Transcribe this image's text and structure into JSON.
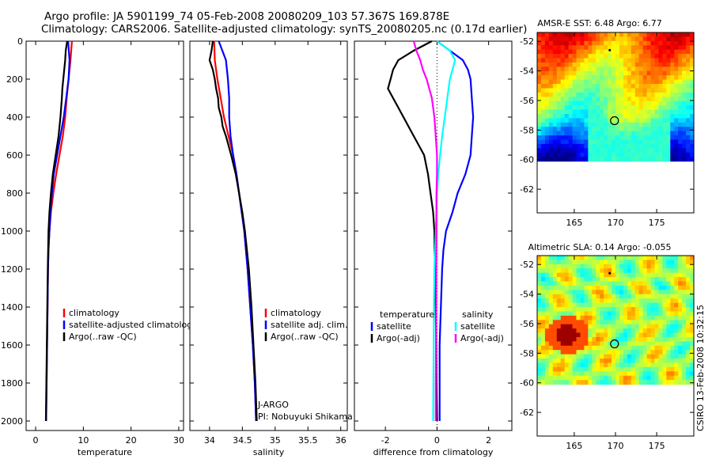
{
  "header": {
    "line1": "Argo profile: JA 5901199_74 05-Feb-2008 20080209_103 57.367S 169.878E",
    "line2": "Climatology: CARS2006. Satellite-adjusted climatology: synTS_20080205.nc (0.17d earlier)"
  },
  "colors": {
    "clim": "#ff0000",
    "sat": "#0000ff",
    "argo": "#000000",
    "sat_sal": "#00ffff",
    "argo_sal": "#ff00ff"
  },
  "chart_data": [
    {
      "type": "line",
      "name": "temperature-profile",
      "xlabel": "temperature",
      "ylabel": "",
      "xlim": [
        -2,
        31
      ],
      "ylim": [
        2050,
        0
      ],
      "xticks": [
        0,
        10,
        20,
        30
      ],
      "yticks": [
        0,
        200,
        400,
        600,
        800,
        1000,
        1200,
        1400,
        1600,
        1800,
        2000
      ],
      "legend": [
        "climatology",
        "satellite-adjusted climatology",
        "Argo(..raw -QC)"
      ],
      "series": [
        {
          "name": "climatology",
          "color": "clim",
          "depth": [
            0,
            100,
            200,
            300,
            400,
            500,
            600,
            700,
            800,
            900,
            1000,
            1100,
            1200,
            1400,
            1600,
            1800,
            2000
          ],
          "values": [
            7.6,
            7.3,
            6.9,
            6.5,
            6.2,
            5.7,
            5.0,
            4.3,
            3.7,
            3.2,
            2.9,
            2.7,
            2.6,
            2.5,
            2.4,
            2.3,
            2.2
          ]
        },
        {
          "name": "satellite-adjusted climatology",
          "color": "sat",
          "depth": [
            0,
            100,
            200,
            300,
            400,
            500,
            600,
            700,
            800,
            900,
            1000,
            1100,
            1200,
            1400,
            1600,
            1800,
            2000
          ],
          "values": [
            6.8,
            7.1,
            6.9,
            6.4,
            5.9,
            5.2,
            4.5,
            3.8,
            3.4,
            3.1,
            2.9,
            2.7,
            2.6,
            2.5,
            2.4,
            2.3,
            2.2
          ]
        },
        {
          "name": "Argo(..raw -QC)",
          "color": "argo",
          "depth": [
            0,
            50,
            100,
            150,
            200,
            250,
            300,
            400,
            500,
            600,
            700,
            800,
            900,
            1000,
            1200,
            1400,
            1600,
            1800,
            2000
          ],
          "values": [
            6.6,
            6.3,
            6.2,
            6.0,
            5.8,
            5.6,
            5.5,
            5.2,
            4.8,
            4.2,
            3.6,
            3.2,
            2.9,
            2.7,
            2.55,
            2.45,
            2.35,
            2.25,
            2.15
          ]
        }
      ]
    },
    {
      "type": "line",
      "name": "salinity-profile",
      "xlabel": "salinity",
      "xlim": [
        33.7,
        36.1
      ],
      "ylim": [
        2050,
        0
      ],
      "xticks": [
        34,
        34.5,
        35,
        35.5,
        36
      ],
      "legend": [
        "climatology",
        "satellite adj. clim.",
        "Argo(..raw -QC)"
      ],
      "annotation": [
        "J-ARGO",
        "PI: Nobuyuki Shikama"
      ],
      "series": [
        {
          "name": "climatology",
          "color": "clim",
          "depth": [
            0,
            100,
            200,
            300,
            400,
            500,
            600,
            700,
            800,
            900,
            1000,
            1200,
            1400,
            1600,
            1800,
            2000
          ],
          "values": [
            34.07,
            34.08,
            34.12,
            34.17,
            34.22,
            34.29,
            34.36,
            34.41,
            34.45,
            34.49,
            34.53,
            34.58,
            34.62,
            34.66,
            34.69,
            34.71
          ]
        },
        {
          "name": "satellite adj. clim.",
          "color": "sat",
          "depth": [
            0,
            100,
            200,
            300,
            400,
            500,
            600,
            700,
            800,
            900,
            1000,
            1200,
            1400,
            1600,
            1800,
            2000
          ],
          "values": [
            34.14,
            34.25,
            34.28,
            34.3,
            34.3,
            34.32,
            34.36,
            34.41,
            34.45,
            34.49,
            34.53,
            34.58,
            34.62,
            34.66,
            34.69,
            34.71
          ]
        },
        {
          "name": "Argo(..raw -QC)",
          "color": "argo",
          "depth": [
            0,
            50,
            100,
            150,
            200,
            250,
            300,
            350,
            400,
            450,
            500,
            600,
            700,
            800,
            900,
            1000,
            1200,
            1400,
            1600,
            1800,
            2000
          ],
          "values": [
            34.05,
            34.03,
            34.0,
            34.05,
            34.08,
            34.1,
            34.13,
            34.14,
            34.18,
            34.2,
            34.25,
            34.33,
            34.4,
            34.45,
            34.5,
            34.54,
            34.6,
            34.64,
            34.67,
            34.7,
            34.72
          ]
        }
      ]
    },
    {
      "type": "line",
      "name": "difference-profile",
      "xlabel": "difference from climatology",
      "xlim": [
        -3.2,
        2.9
      ],
      "ylim": [
        2050,
        0
      ],
      "xticks": [
        -2,
        0,
        2
      ],
      "legend_left": [
        "temperature",
        "satellite",
        "Argo(-adj)"
      ],
      "legend_right": [
        "salinity",
        "satellite",
        "Argo(-adj)"
      ],
      "series": [
        {
          "name": "temperature satellite",
          "color": "sat",
          "depth": [
            0,
            50,
            100,
            150,
            200,
            300,
            400,
            500,
            600,
            700,
            800,
            900,
            1000,
            1100,
            1200,
            1400,
            1600,
            1800,
            2000
          ],
          "values": [
            0.0,
            0.5,
            1.0,
            1.2,
            1.3,
            1.35,
            1.4,
            1.35,
            1.3,
            1.1,
            0.8,
            0.6,
            0.35,
            0.25,
            0.2,
            0.15,
            0.1,
            0.1,
            0.1
          ]
        },
        {
          "name": "temperature Argo(-adj)",
          "color": "argo",
          "depth": [
            0,
            50,
            100,
            150,
            200,
            250,
            300,
            350,
            400,
            450,
            500,
            550,
            600,
            700,
            800,
            900,
            1000,
            1200,
            1400,
            1600,
            1800,
            2000
          ],
          "values": [
            -0.2,
            -0.9,
            -1.5,
            -1.7,
            -1.8,
            -1.9,
            -1.7,
            -1.5,
            -1.3,
            -1.1,
            -0.9,
            -0.7,
            -0.5,
            -0.35,
            -0.25,
            -0.15,
            -0.1,
            -0.08,
            -0.05,
            -0.03,
            -0.02,
            0.0
          ]
        },
        {
          "name": "salinity satellite",
          "color": "sat_sal",
          "depth": [
            0,
            50,
            100,
            150,
            200,
            300,
            400,
            500,
            600,
            700,
            800,
            1000,
            1200,
            1400,
            1600,
            1800,
            2000
          ],
          "values": [
            0.0,
            0.5,
            0.7,
            0.6,
            0.5,
            0.4,
            0.3,
            0.2,
            0.12,
            0.05,
            0.0,
            -0.05,
            -0.1,
            -0.12,
            -0.13,
            -0.14,
            -0.15
          ]
        },
        {
          "name": "salinity Argo(-adj)",
          "color": "argo_sal",
          "depth": [
            0,
            50,
            100,
            150,
            200,
            250,
            300,
            400,
            500,
            600,
            700,
            800,
            1000,
            1200,
            1400,
            1600,
            1800,
            2000
          ],
          "values": [
            -0.9,
            -0.8,
            -0.65,
            -0.55,
            -0.4,
            -0.3,
            -0.2,
            -0.1,
            -0.05,
            0.0,
            0.0,
            -0.02,
            -0.02,
            -0.03,
            -0.03,
            -0.04,
            -0.05,
            -0.05
          ]
        }
      ]
    }
  ],
  "maps": [
    {
      "name": "sst-map",
      "title": "AMSR-E SST: 6.48 Argo: 6.77",
      "xticks": [
        165,
        170,
        175
      ],
      "yticks": [
        -52,
        -54,
        -56,
        -58,
        -60,
        -62
      ],
      "xlim": [
        160.5,
        179.5
      ],
      "ylim": [
        -63.6,
        -51.4
      ],
      "data_ylim": [
        -60.1,
        -51.4
      ],
      "float_lon": 169.878,
      "float_lat": -57.367
    },
    {
      "name": "sla-map",
      "title": "Altimetric SLA: 0.14 Argo: -0.055",
      "xticks": [
        165,
        170,
        175
      ],
      "yticks": [
        -52,
        -54,
        -56,
        -58,
        -60,
        -62
      ],
      "xlim": [
        160.5,
        179.5
      ],
      "ylim": [
        -63.6,
        -51.4
      ],
      "data_ylim": [
        -60.1,
        -51.4
      ],
      "float_lon": 169.878,
      "float_lat": -57.367
    }
  ],
  "footer": {
    "credit": "CSIRO 13-Feb-2008 10:32:15"
  }
}
